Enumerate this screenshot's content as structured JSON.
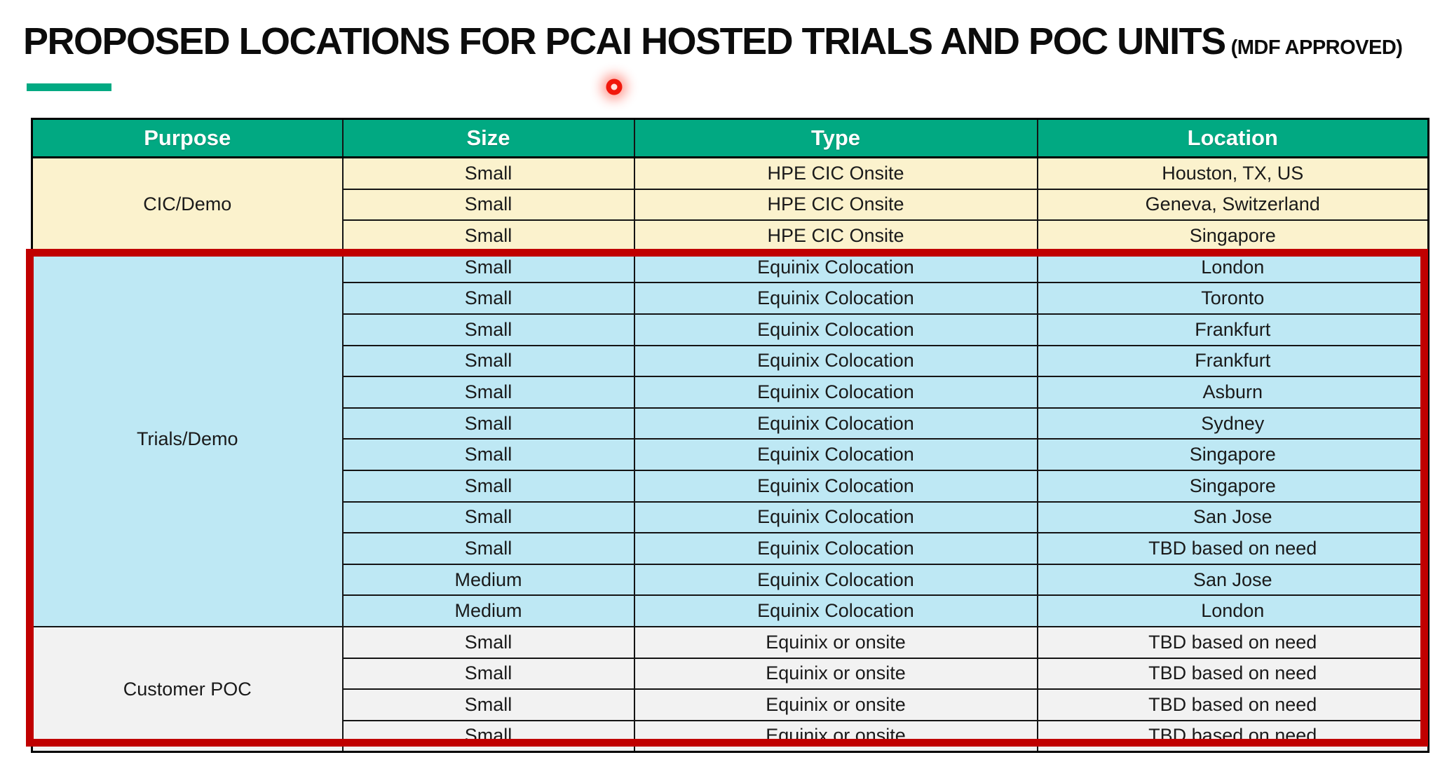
{
  "slide": {
    "title": "PROPOSED LOCATIONS FOR PCAI HOSTED TRIALS AND POC UNITS",
    "title_suffix": "(MDF APPROVED)"
  },
  "colors": {
    "header_green": "#01A982",
    "accent_bar_green": "#01A982",
    "cic_demo_row_bg": "#FBF2CD",
    "trials_demo_row_bg": "#BEE8F4",
    "customer_poc_row_bg": "#F2F2F2",
    "highlight_border_red": "#C00000",
    "laser_pointer_red": "#F1180C",
    "header_text": "#FFFFFF",
    "body_text": "#1A1A1A"
  },
  "table": {
    "headers": [
      "Purpose",
      "Size",
      "Type",
      "Location"
    ],
    "sections": [
      {
        "purpose": "CIC/Demo",
        "highlighted": false,
        "rows": [
          {
            "size": "Small",
            "type": "HPE CIC Onsite",
            "location": "Houston, TX, US"
          },
          {
            "size": "Small",
            "type": "HPE CIC Onsite",
            "location": "Geneva, Switzerland"
          },
          {
            "size": "Small",
            "type": "HPE CIC Onsite",
            "location": "Singapore"
          }
        ]
      },
      {
        "purpose": "Trials/Demo",
        "highlighted": true,
        "rows": [
          {
            "size": "Small",
            "type": "Equinix Colocation",
            "location": "London"
          },
          {
            "size": "Small",
            "type": "Equinix Colocation",
            "location": "Toronto"
          },
          {
            "size": "Small",
            "type": "Equinix Colocation",
            "location": "Frankfurt"
          },
          {
            "size": "Small",
            "type": "Equinix Colocation",
            "location": "Frankfurt"
          },
          {
            "size": "Small",
            "type": "Equinix Colocation",
            "location": "Asburn"
          },
          {
            "size": "Small",
            "type": "Equinix Colocation",
            "location": "Sydney"
          },
          {
            "size": "Small",
            "type": "Equinix Colocation",
            "location": "Singapore"
          },
          {
            "size": "Small",
            "type": "Equinix Colocation",
            "location": "Singapore"
          },
          {
            "size": "Small",
            "type": "Equinix Colocation",
            "location": "San Jose"
          },
          {
            "size": "Small",
            "type": "Equinix Colocation",
            "location": "TBD based on need"
          },
          {
            "size": "Medium",
            "type": "Equinix Colocation",
            "location": "San Jose"
          },
          {
            "size": "Medium",
            "type": "Equinix Colocation",
            "location": "London"
          }
        ]
      },
      {
        "purpose": "Customer POC",
        "highlighted": true,
        "rows": [
          {
            "size": "Small",
            "type": "Equinix or onsite",
            "location": "TBD based on need"
          },
          {
            "size": "Small",
            "type": "Equinix or onsite",
            "location": "TBD based on need"
          },
          {
            "size": "Small",
            "type": "Equinix or onsite",
            "location": "TBD based on need"
          },
          {
            "size": "Small",
            "type": "Equinix or onsite",
            "location": "TBD based on need"
          }
        ]
      }
    ]
  }
}
